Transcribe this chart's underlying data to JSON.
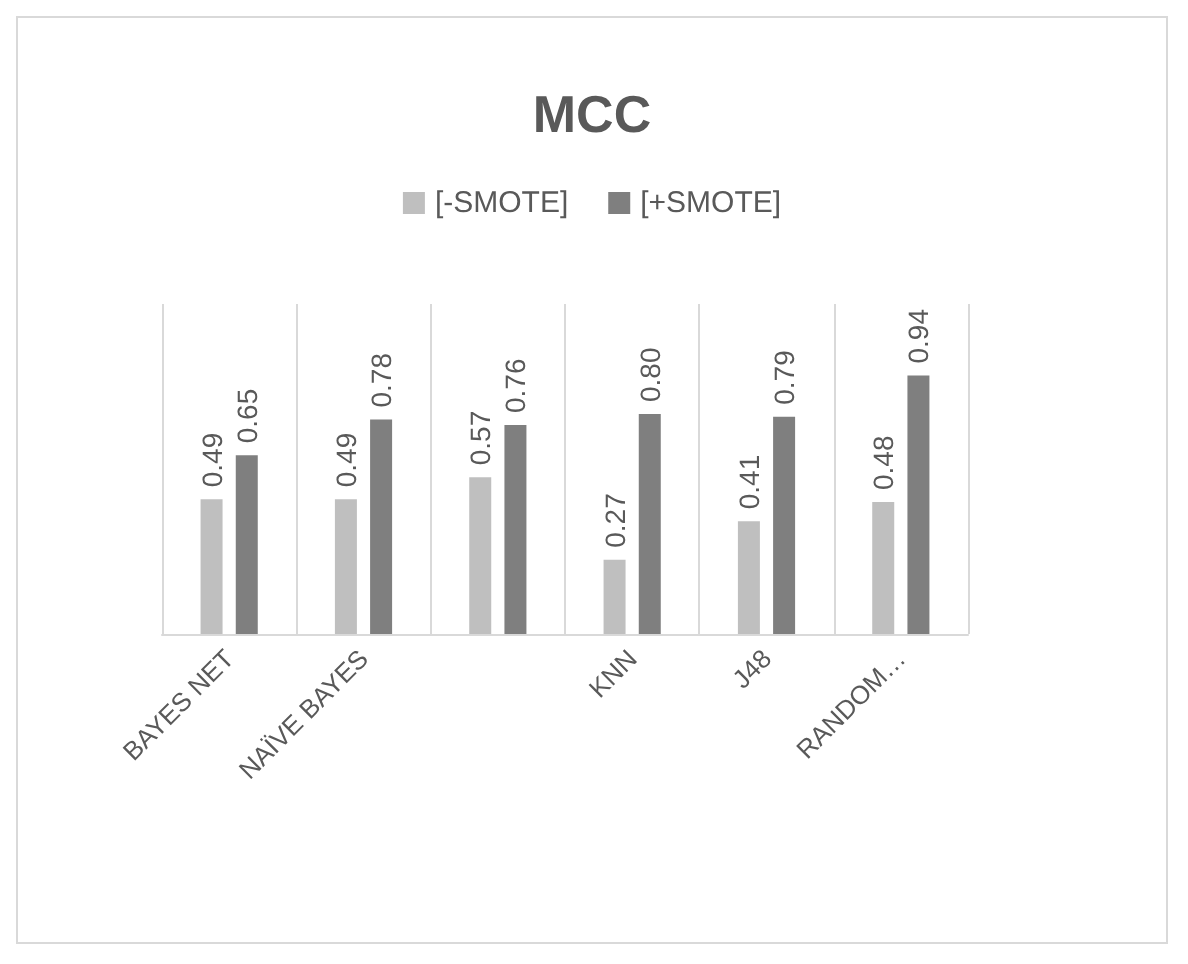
{
  "chart_data": {
    "type": "bar",
    "title": "MCC",
    "categories": [
      "BAYES NET",
      "NAÏVE BAYES",
      null,
      "KNN",
      "J48",
      "RANDOM…"
    ],
    "series": [
      {
        "name": "[-SMOTE]",
        "color": "#bfbfbf",
        "values": [
          0.49,
          0.49,
          0.57,
          0.27,
          0.41,
          0.48
        ],
        "value_labels": [
          "0.49",
          "0.49",
          "0.57",
          "0.27",
          "0.41",
          "0.48"
        ]
      },
      {
        "name": "[+SMOTE]",
        "color": "#7f7f7f",
        "values": [
          0.65,
          0.78,
          0.76,
          0.8,
          0.79,
          0.94
        ],
        "value_labels": [
          "0.65",
          "0.78",
          "0.76",
          "0.80",
          "0.79",
          "0.94"
        ]
      }
    ],
    "ylim": [
      0,
      1.2
    ],
    "grid": "x",
    "legend": "top",
    "tick_labels": "x"
  }
}
